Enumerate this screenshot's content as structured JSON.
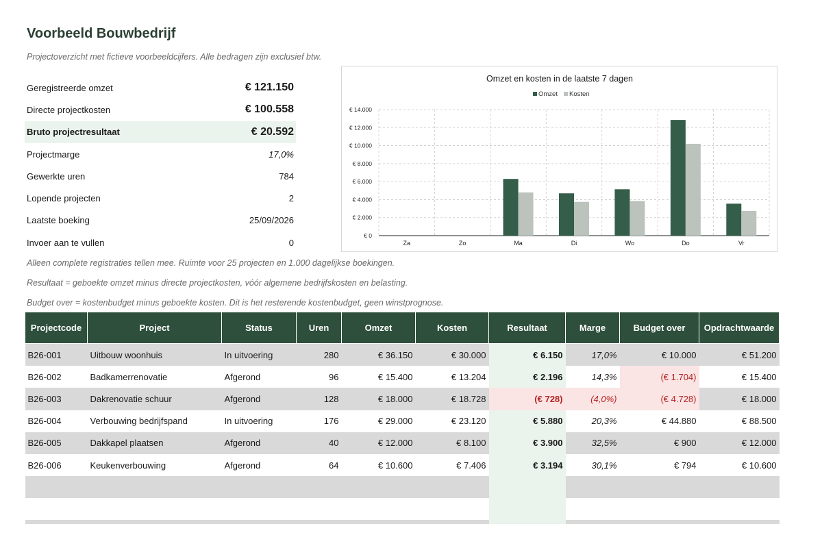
{
  "header": {
    "title": "Voorbeeld Bouwbedrijf",
    "subtitle": "Projectoverzicht met fictieve voorbeeldcijfers. Alle bedragen zijn exclusief btw."
  },
  "kpis": [
    {
      "label": "Geregistreerde omzet",
      "value": "€ 121.150"
    },
    {
      "label": "Directe projectkosten",
      "value": "€ 100.558"
    },
    {
      "label": "Bruto projectresultaat",
      "value": "€ 20.592"
    },
    {
      "label": "Projectmarge",
      "value": "17,0%"
    },
    {
      "label": "Gewerkte uren",
      "value": "784"
    },
    {
      "label": "Lopende projecten",
      "value": "2"
    },
    {
      "label": "Laatste boeking",
      "value": "25/09/2026"
    },
    {
      "label": "Invoer aan te vullen",
      "value": "0"
    }
  ],
  "notes": {
    "line1": "Alleen complete registraties tellen mee. Ruimte voor 25 projecten en 1.000 dagelijkse boekingen.",
    "line2": "Resultaat = geboekte omzet minus directe projectkosten, vóór algemene bedrijfskosten en belasting.",
    "line3": "Budget over = kostenbudget minus geboekte kosten. Dit is het resterende kostenbudget, geen winstprognose."
  },
  "table": {
    "headers": [
      "Projectcode",
      "Project",
      "Status",
      "Uren",
      "Omzet",
      "Kosten",
      "Resultaat",
      "Marge",
      "Budget over",
      "Opdrachtwaarde"
    ],
    "rows": [
      [
        "B26-001",
        "Uitbouw woonhuis",
        "In uitvoering",
        "280",
        "€ 36.150",
        "€ 30.000",
        "€ 6.150",
        "17,0%",
        "€ 10.000",
        "€ 51.200"
      ],
      [
        "B26-002",
        "Badkamerrenovatie",
        "Afgerond",
        "96",
        "€ 15.400",
        "€ 13.204",
        "€ 2.196",
        "14,3%",
        "(€ 1.704)",
        "€ 15.400"
      ],
      [
        "B26-003",
        "Dakrenovatie schuur",
        "Afgerond",
        "128",
        "€ 18.000",
        "€ 18.728",
        "(€ 728)",
        "(4,0%)",
        "(€ 4.728)",
        "€ 18.000"
      ],
      [
        "B26-004",
        "Verbouwing bedrijfspand",
        "In uitvoering",
        "176",
        "€ 29.000",
        "€ 23.120",
        "€ 5.880",
        "20,3%",
        "€ 44.880",
        "€ 88.500"
      ],
      [
        "B26-005",
        "Dakkapel plaatsen",
        "Afgerond",
        "40",
        "€ 12.000",
        "€ 8.100",
        "€ 3.900",
        "32,5%",
        "€ 900",
        "€ 12.000"
      ],
      [
        "B26-006",
        "Keukenverbouwing",
        "Afgerond",
        "64",
        "€ 10.600",
        "€ 7.406",
        "€ 3.194",
        "30,1%",
        "€ 794",
        "€ 10.600"
      ]
    ],
    "negative_cells": [
      [
        1,
        8
      ],
      [
        2,
        6
      ],
      [
        2,
        7
      ],
      [
        2,
        8
      ]
    ]
  },
  "colors": {
    "header_bg": "#2d4f3c",
    "title": "#2b3f33",
    "result_bg": "#eaf3ec",
    "negative_bg": "#fbe4e4",
    "negative_text": "#b32424",
    "row_shade": "#d9d9d9",
    "omzet_bar": "#355e4a",
    "kosten_bar": "#bcc3bd"
  },
  "chart_data": {
    "type": "bar",
    "title": "Omzet en kosten in de laatste 7 dagen",
    "categories": [
      "Za",
      "Zo",
      "Ma",
      "Di",
      "Wo",
      "Do",
      "Vr"
    ],
    "series": [
      {
        "name": "Omzet",
        "values": [
          0,
          0,
          6300,
          4700,
          5150,
          12850,
          3550
        ]
      },
      {
        "name": "Kosten",
        "values": [
          0,
          0,
          4800,
          3750,
          3850,
          10200,
          2750
        ]
      }
    ],
    "y_ticks": [
      "€ 0",
      "€ 2.000",
      "€ 4.000",
      "€ 6.000",
      "€ 8.000",
      "€ 10.000",
      "€ 12.000",
      "€ 14.000"
    ],
    "ylim": [
      0,
      14000
    ],
    "legend": "top-center",
    "grid": true
  }
}
